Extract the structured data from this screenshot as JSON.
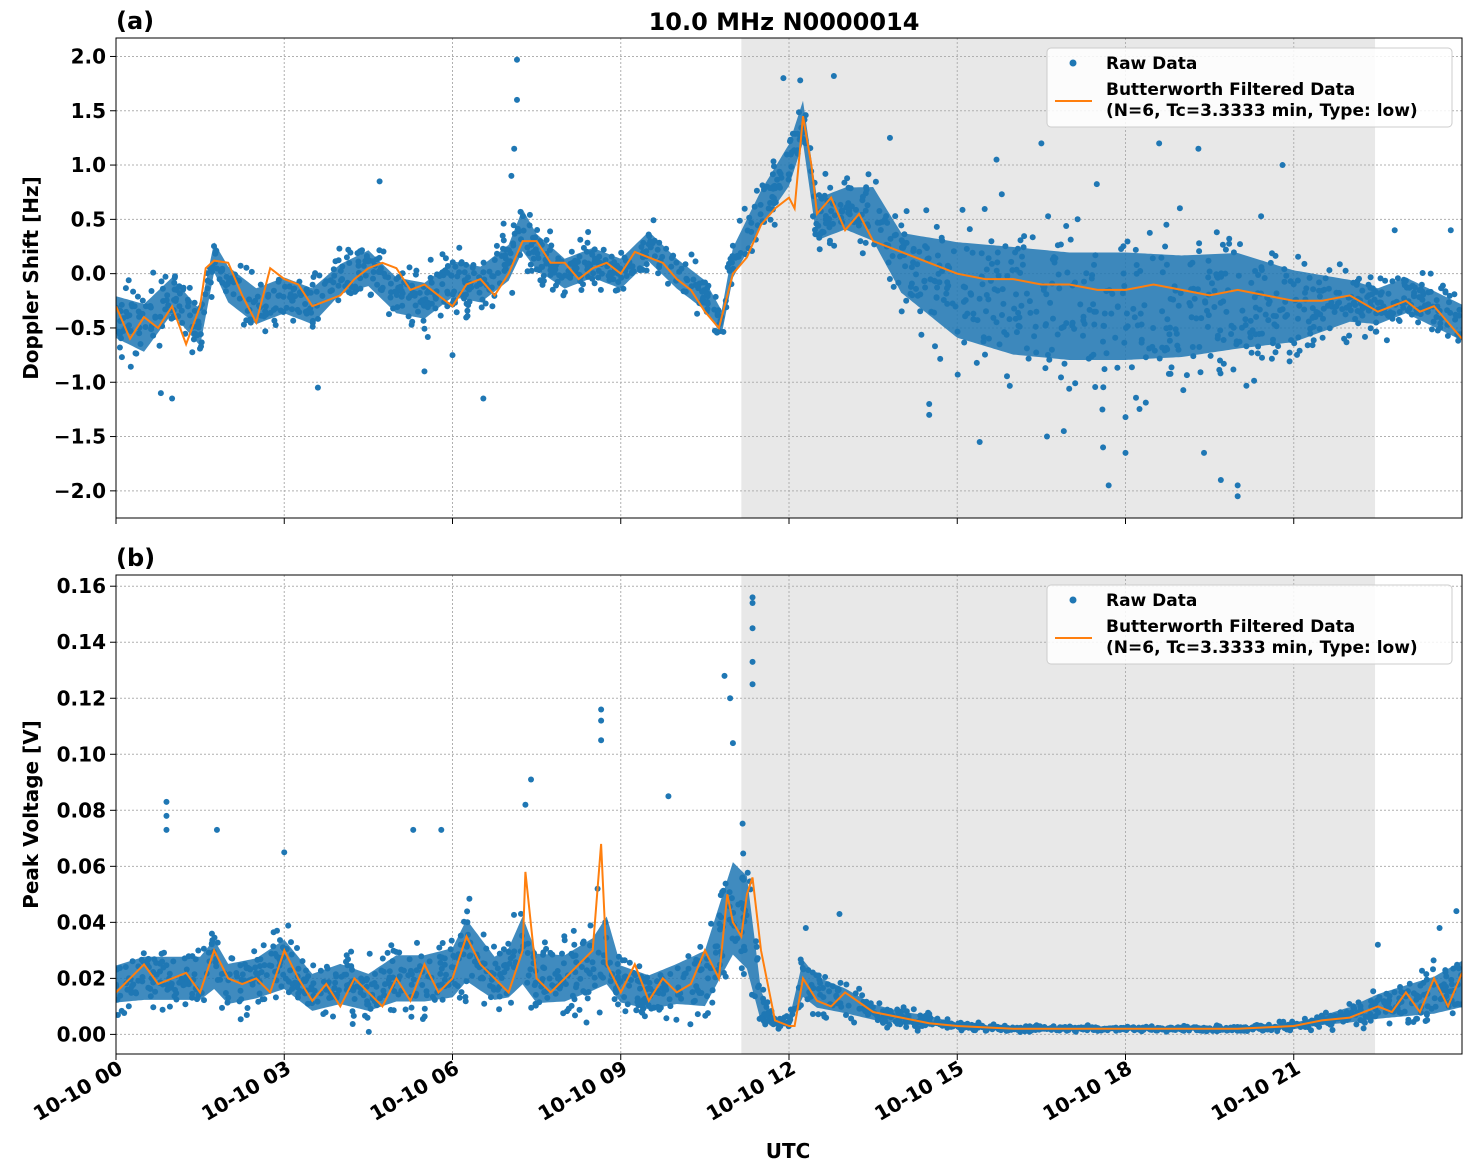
{
  "figure": {
    "title": "10.0 MHz N0000014",
    "xlabel": "UTC"
  },
  "chart_data": [
    {
      "type": "scatter",
      "panel_label": "(a)",
      "ylabel": "Doppler Shift [Hz]",
      "xlim_hours": [
        0,
        24
      ],
      "ylim": [
        -2.25,
        2.17
      ],
      "yticks": [
        2.0,
        1.5,
        1.0,
        0.5,
        0.0,
        -0.5,
        -1.0,
        -1.5,
        -2.0
      ],
      "ytick_labels": [
        "2.0",
        "1.5",
        "1.0",
        "0.5",
        "0.0",
        "−0.5",
        "−1.0",
        "−1.5",
        "−2.0"
      ],
      "grid": true,
      "legend": {
        "position": "top-right",
        "entries": [
          "Raw Data",
          "Butterworth Filtered Data",
          "(N=6, Tc=3.3333 min, Type: low)"
        ]
      },
      "shaded_region_hours": [
        11.15,
        22.45
      ],
      "series": [
        {
          "name": "Raw Data",
          "kind": "points",
          "color": "#1f77b4",
          "x_hours": [
            0,
            0.5,
            1,
            1.5,
            1.75,
            2,
            2.5,
            3,
            3.5,
            4,
            4.5,
            5,
            5.5,
            6,
            6.5,
            7,
            7.25,
            7.5,
            8,
            8.5,
            9,
            9.5,
            10,
            10.5,
            10.8,
            11,
            11.5,
            12,
            12.25,
            12.5,
            13,
            13.5,
            14,
            15,
            16,
            17,
            18,
            19,
            20,
            21,
            22,
            22.5,
            23,
            24
          ],
          "y_center": [
            -0.4,
            -0.5,
            -0.2,
            -0.5,
            0.15,
            -0.1,
            -0.3,
            -0.2,
            -0.3,
            -0.05,
            0.05,
            -0.2,
            -0.25,
            -0.05,
            -0.1,
            0.1,
            0.4,
            0.2,
            0.0,
            0.1,
            0.0,
            0.25,
            0.0,
            -0.2,
            -0.45,
            0.1,
            0.6,
            1.0,
            1.4,
            0.5,
            0.6,
            0.55,
            0.1,
            -0.15,
            -0.25,
            -0.3,
            -0.3,
            -0.3,
            -0.25,
            -0.3,
            -0.25,
            -0.3,
            -0.2,
            -0.45
          ],
          "y_spread": [
            0.35,
            0.4,
            0.3,
            0.3,
            0.25,
            0.3,
            0.3,
            0.3,
            0.3,
            0.25,
            0.3,
            0.3,
            0.3,
            0.3,
            0.3,
            0.3,
            0.35,
            0.3,
            0.25,
            0.25,
            0.25,
            0.25,
            0.25,
            0.25,
            0.2,
            0.25,
            0.3,
            0.35,
            0.35,
            0.35,
            0.35,
            0.45,
            0.5,
            0.8,
            0.9,
            0.9,
            0.9,
            0.85,
            0.8,
            0.6,
            0.35,
            0.3,
            0.3,
            0.3
          ],
          "outliers": [
            [
              7.15,
              1.97
            ],
            [
              7.15,
              1.6
            ],
            [
              7.1,
              1.15
            ],
            [
              7.05,
              0.9
            ],
            [
              4.7,
              0.85
            ],
            [
              12.8,
              1.82
            ],
            [
              11.9,
              1.8
            ],
            [
              12.2,
              1.78
            ],
            [
              6.55,
              -1.15
            ],
            [
              1.0,
              -1.15
            ],
            [
              0.8,
              -1.1
            ],
            [
              3.6,
              -1.05
            ],
            [
              5.5,
              -0.9
            ],
            [
              6.0,
              -0.75
            ],
            [
              16.6,
              -1.5
            ],
            [
              17.6,
              -1.6
            ],
            [
              17.7,
              -1.95
            ],
            [
              18.0,
              -1.65
            ],
            [
              20.0,
              -2.05
            ],
            [
              20.0,
              -1.95
            ],
            [
              19.7,
              -1.9
            ],
            [
              19.4,
              -1.65
            ],
            [
              16.9,
              -1.45
            ],
            [
              15.4,
              -1.55
            ],
            [
              14.5,
              -1.3
            ],
            [
              14.5,
              -1.2
            ],
            [
              18.6,
              1.2
            ],
            [
              19.3,
              1.15
            ],
            [
              20.8,
              1.0
            ],
            [
              16.5,
              1.2
            ],
            [
              15.7,
              1.05
            ],
            [
              22.8,
              0.4
            ],
            [
              23.8,
              0.4
            ],
            [
              13.8,
              1.25
            ]
          ]
        },
        {
          "name": "Butterworth Filtered Data",
          "kind": "line",
          "color": "#ff7f0e",
          "x_hours": [
            0,
            0.25,
            0.5,
            0.75,
            1,
            1.25,
            1.5,
            1.6,
            1.75,
            2,
            2.25,
            2.5,
            2.75,
            3,
            3.25,
            3.5,
            3.75,
            4,
            4.25,
            4.5,
            4.75,
            5,
            5.25,
            5.5,
            5.75,
            6,
            6.25,
            6.5,
            6.75,
            7,
            7.25,
            7.5,
            7.75,
            8,
            8.25,
            8.5,
            8.75,
            9,
            9.25,
            9.5,
            9.75,
            10,
            10.25,
            10.5,
            10.75,
            11,
            11.25,
            11.5,
            11.75,
            12,
            12.1,
            12.25,
            12.4,
            12.5,
            12.75,
            13,
            13.25,
            13.5,
            13.75,
            14,
            14.5,
            15,
            15.5,
            16,
            16.5,
            17,
            17.5,
            18,
            18.5,
            19,
            19.5,
            20,
            20.5,
            21,
            21.5,
            22,
            22.5,
            23,
            23.25,
            23.5,
            23.75,
            24
          ],
          "y": [
            -0.3,
            -0.6,
            -0.4,
            -0.5,
            -0.3,
            -0.65,
            -0.3,
            0.05,
            0.12,
            0.1,
            -0.2,
            -0.45,
            0.05,
            -0.05,
            -0.1,
            -0.3,
            -0.25,
            -0.2,
            -0.05,
            0.05,
            0.1,
            0.05,
            -0.15,
            -0.1,
            -0.2,
            -0.3,
            -0.1,
            -0.05,
            -0.2,
            0.0,
            0.3,
            0.3,
            0.1,
            0.1,
            -0.05,
            0.05,
            0.1,
            0.0,
            0.2,
            0.15,
            0.1,
            -0.05,
            -0.15,
            -0.35,
            -0.5,
            0.0,
            0.15,
            0.45,
            0.6,
            0.7,
            0.6,
            1.45,
            1.0,
            0.55,
            0.7,
            0.4,
            0.55,
            0.3,
            0.25,
            0.2,
            0.1,
            0.0,
            -0.05,
            -0.05,
            -0.1,
            -0.1,
            -0.15,
            -0.15,
            -0.1,
            -0.15,
            -0.2,
            -0.15,
            -0.2,
            -0.25,
            -0.25,
            -0.2,
            -0.35,
            -0.25,
            -0.35,
            -0.3,
            -0.45,
            -0.6
          ]
        }
      ]
    },
    {
      "type": "scatter",
      "panel_label": "(b)",
      "ylabel": "Peak Voltage [V]",
      "xlim_hours": [
        0,
        24
      ],
      "ylim": [
        -0.007,
        0.164
      ],
      "yticks": [
        0.16,
        0.14,
        0.12,
        0.1,
        0.08,
        0.06,
        0.04,
        0.02,
        0.0
      ],
      "ytick_labels": [
        "0.16",
        "0.14",
        "0.12",
        "0.10",
        "0.08",
        "0.06",
        "0.04",
        "0.02",
        "0.00"
      ],
      "xticks_hours": [
        0,
        3,
        6,
        9,
        12,
        15,
        18,
        21
      ],
      "xtick_labels": [
        "10-10 00",
        "10-10 03",
        "10-10 06",
        "10-10 09",
        "10-10 12",
        "10-10 15",
        "10-10 18",
        "10-10 21"
      ],
      "grid": true,
      "legend": {
        "position": "top-right",
        "entries": [
          "Raw Data",
          "Butterworth Filtered Data",
          "(N=6, Tc=3.3333 min, Type: low)"
        ]
      },
      "shaded_region_hours": [
        11.15,
        22.45
      ],
      "series": [
        {
          "name": "Raw Data",
          "kind": "points",
          "color": "#1f77b4",
          "x_hours": [
            0,
            0.5,
            1,
            1.5,
            1.75,
            2,
            2.5,
            3,
            3.5,
            4,
            4.5,
            5,
            5.5,
            6,
            6.25,
            6.5,
            6.75,
            7,
            7.25,
            7.5,
            8,
            8.5,
            8.75,
            9,
            9.5,
            10,
            10.5,
            11,
            11.25,
            11.5,
            11.75,
            12,
            12.25,
            12.5,
            13,
            13.5,
            14,
            14.5,
            15,
            16,
            17,
            18,
            19,
            20,
            21,
            21.5,
            22,
            22.5,
            23,
            23.5,
            24
          ],
          "y_center": [
            0.018,
            0.02,
            0.02,
            0.02,
            0.025,
            0.018,
            0.02,
            0.025,
            0.015,
            0.018,
            0.015,
            0.02,
            0.02,
            0.022,
            0.03,
            0.025,
            0.02,
            0.022,
            0.03,
            0.02,
            0.02,
            0.025,
            0.03,
            0.018,
            0.015,
            0.018,
            0.02,
            0.045,
            0.04,
            0.01,
            0.004,
            0.004,
            0.02,
            0.015,
            0.012,
            0.008,
            0.006,
            0.005,
            0.003,
            0.002,
            0.002,
            0.002,
            0.002,
            0.002,
            0.003,
            0.005,
            0.007,
            0.01,
            0.012,
            0.014,
            0.018
          ],
          "y_spread": [
            0.012,
            0.014,
            0.014,
            0.014,
            0.016,
            0.013,
            0.013,
            0.016,
            0.012,
            0.013,
            0.012,
            0.015,
            0.015,
            0.016,
            0.02,
            0.017,
            0.014,
            0.016,
            0.022,
            0.016,
            0.015,
            0.017,
            0.022,
            0.012,
            0.011,
            0.013,
            0.018,
            0.03,
            0.03,
            0.01,
            0.002,
            0.002,
            0.012,
            0.01,
            0.008,
            0.005,
            0.004,
            0.003,
            0.0015,
            0.001,
            0.001,
            0.001,
            0.001,
            0.001,
            0.002,
            0.003,
            0.005,
            0.008,
            0.01,
            0.012,
            0.015
          ],
          "outliers": [
            [
              11.35,
              0.156
            ],
            [
              11.35,
              0.154
            ],
            [
              11.35,
              0.145
            ],
            [
              11.35,
              0.133
            ],
            [
              11.35,
              0.125
            ],
            [
              10.85,
              0.128
            ],
            [
              10.95,
              0.12
            ],
            [
              11.0,
              0.104
            ],
            [
              8.65,
              0.116
            ],
            [
              8.65,
              0.112
            ],
            [
              8.65,
              0.105
            ],
            [
              7.4,
              0.091
            ],
            [
              7.3,
              0.082
            ],
            [
              0.9,
              0.083
            ],
            [
              0.9,
              0.078
            ],
            [
              0.9,
              0.073
            ],
            [
              1.8,
              0.073
            ],
            [
              3.0,
              0.065
            ],
            [
              5.8,
              0.073
            ],
            [
              5.3,
              0.073
            ],
            [
              9.85,
              0.085
            ],
            [
              12.9,
              0.043
            ],
            [
              12.3,
              0.038
            ],
            [
              23.9,
              0.044
            ],
            [
              22.5,
              0.032
            ],
            [
              23.6,
              0.038
            ]
          ]
        },
        {
          "name": "Butterworth Filtered Data",
          "kind": "line",
          "color": "#ff7f0e",
          "x_hours": [
            0,
            0.25,
            0.5,
            0.75,
            1,
            1.25,
            1.5,
            1.75,
            2,
            2.25,
            2.5,
            2.75,
            3,
            3.25,
            3.5,
            3.75,
            4,
            4.25,
            4.5,
            4.75,
            5,
            5.25,
            5.5,
            5.75,
            6,
            6.25,
            6.5,
            6.75,
            7,
            7.25,
            7.3,
            7.5,
            7.75,
            8,
            8.25,
            8.5,
            8.65,
            8.75,
            9,
            9.25,
            9.5,
            9.75,
            10,
            10.25,
            10.5,
            10.75,
            10.9,
            11,
            11.15,
            11.25,
            11.35,
            11.5,
            11.75,
            12,
            12.1,
            12.25,
            12.5,
            12.75,
            13,
            13.5,
            14,
            14.5,
            15,
            16,
            17,
            18,
            19,
            20,
            21,
            21.5,
            22,
            22.5,
            22.75,
            23,
            23.25,
            23.5,
            23.75,
            24
          ],
          "y": [
            0.015,
            0.02,
            0.025,
            0.018,
            0.02,
            0.022,
            0.015,
            0.03,
            0.02,
            0.018,
            0.02,
            0.015,
            0.03,
            0.02,
            0.012,
            0.018,
            0.01,
            0.02,
            0.015,
            0.01,
            0.02,
            0.012,
            0.025,
            0.015,
            0.02,
            0.035,
            0.025,
            0.02,
            0.015,
            0.03,
            0.058,
            0.02,
            0.015,
            0.02,
            0.025,
            0.03,
            0.068,
            0.025,
            0.015,
            0.025,
            0.012,
            0.02,
            0.015,
            0.018,
            0.03,
            0.02,
            0.05,
            0.04,
            0.035,
            0.05,
            0.056,
            0.03,
            0.005,
            0.003,
            0.003,
            0.02,
            0.012,
            0.01,
            0.015,
            0.008,
            0.006,
            0.004,
            0.003,
            0.002,
            0.002,
            0.002,
            0.002,
            0.002,
            0.003,
            0.005,
            0.006,
            0.01,
            0.008,
            0.015,
            0.008,
            0.02,
            0.01,
            0.022
          ]
        }
      ]
    }
  ]
}
